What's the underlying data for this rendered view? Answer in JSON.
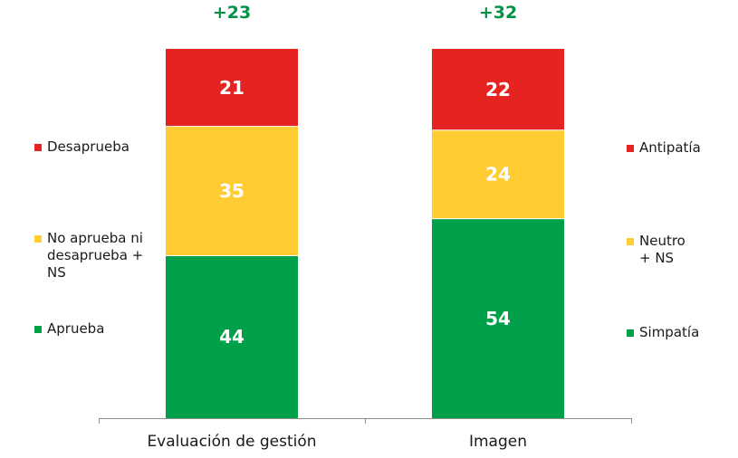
{
  "chart_data": {
    "type": "bar",
    "stacked": true,
    "categories": [
      "Evaluación de gestión",
      "Imagen"
    ],
    "bars": [
      {
        "category": "Evaluación de gestión",
        "difference": "+23",
        "segments": [
          {
            "name": "Aprueba",
            "value": 44,
            "label": "44",
            "color": "#00A04A"
          },
          {
            "name": "No aprueba ni desaprueba + NS",
            "value": 35,
            "label": "35",
            "color": "#FFCC33"
          },
          {
            "name": "Desaprueba",
            "value": 21,
            "label": "21",
            "color": "#E52421"
          }
        ]
      },
      {
        "category": "Imagen",
        "difference": "+32",
        "segments": [
          {
            "name": "Simpatía",
            "value": 54,
            "label": "54",
            "color": "#00A04A"
          },
          {
            "name": "Neutro + NS",
            "value": 24,
            "label": "24",
            "color": "#FFCC33"
          },
          {
            "name": "Antipatía",
            "value": 22,
            "label": "22",
            "color": "#E52421"
          }
        ]
      }
    ],
    "ylim": [
      0,
      100
    ],
    "grid": false,
    "difference_color": "#009245"
  },
  "legend_left": [
    {
      "label": "Desaprueba",
      "color": "#E52421"
    },
    {
      "label": "No aprueba ni desaprueba + NS",
      "color": "#FFCC33"
    },
    {
      "label": "Aprueba",
      "color": "#00A04A"
    }
  ],
  "legend_right": [
    {
      "label": "Antipatía",
      "color": "#E52421"
    },
    {
      "label": "Neutro + NS",
      "color": "#FFCC33"
    },
    {
      "label": "Simpatía",
      "color": "#00A04A"
    }
  ]
}
